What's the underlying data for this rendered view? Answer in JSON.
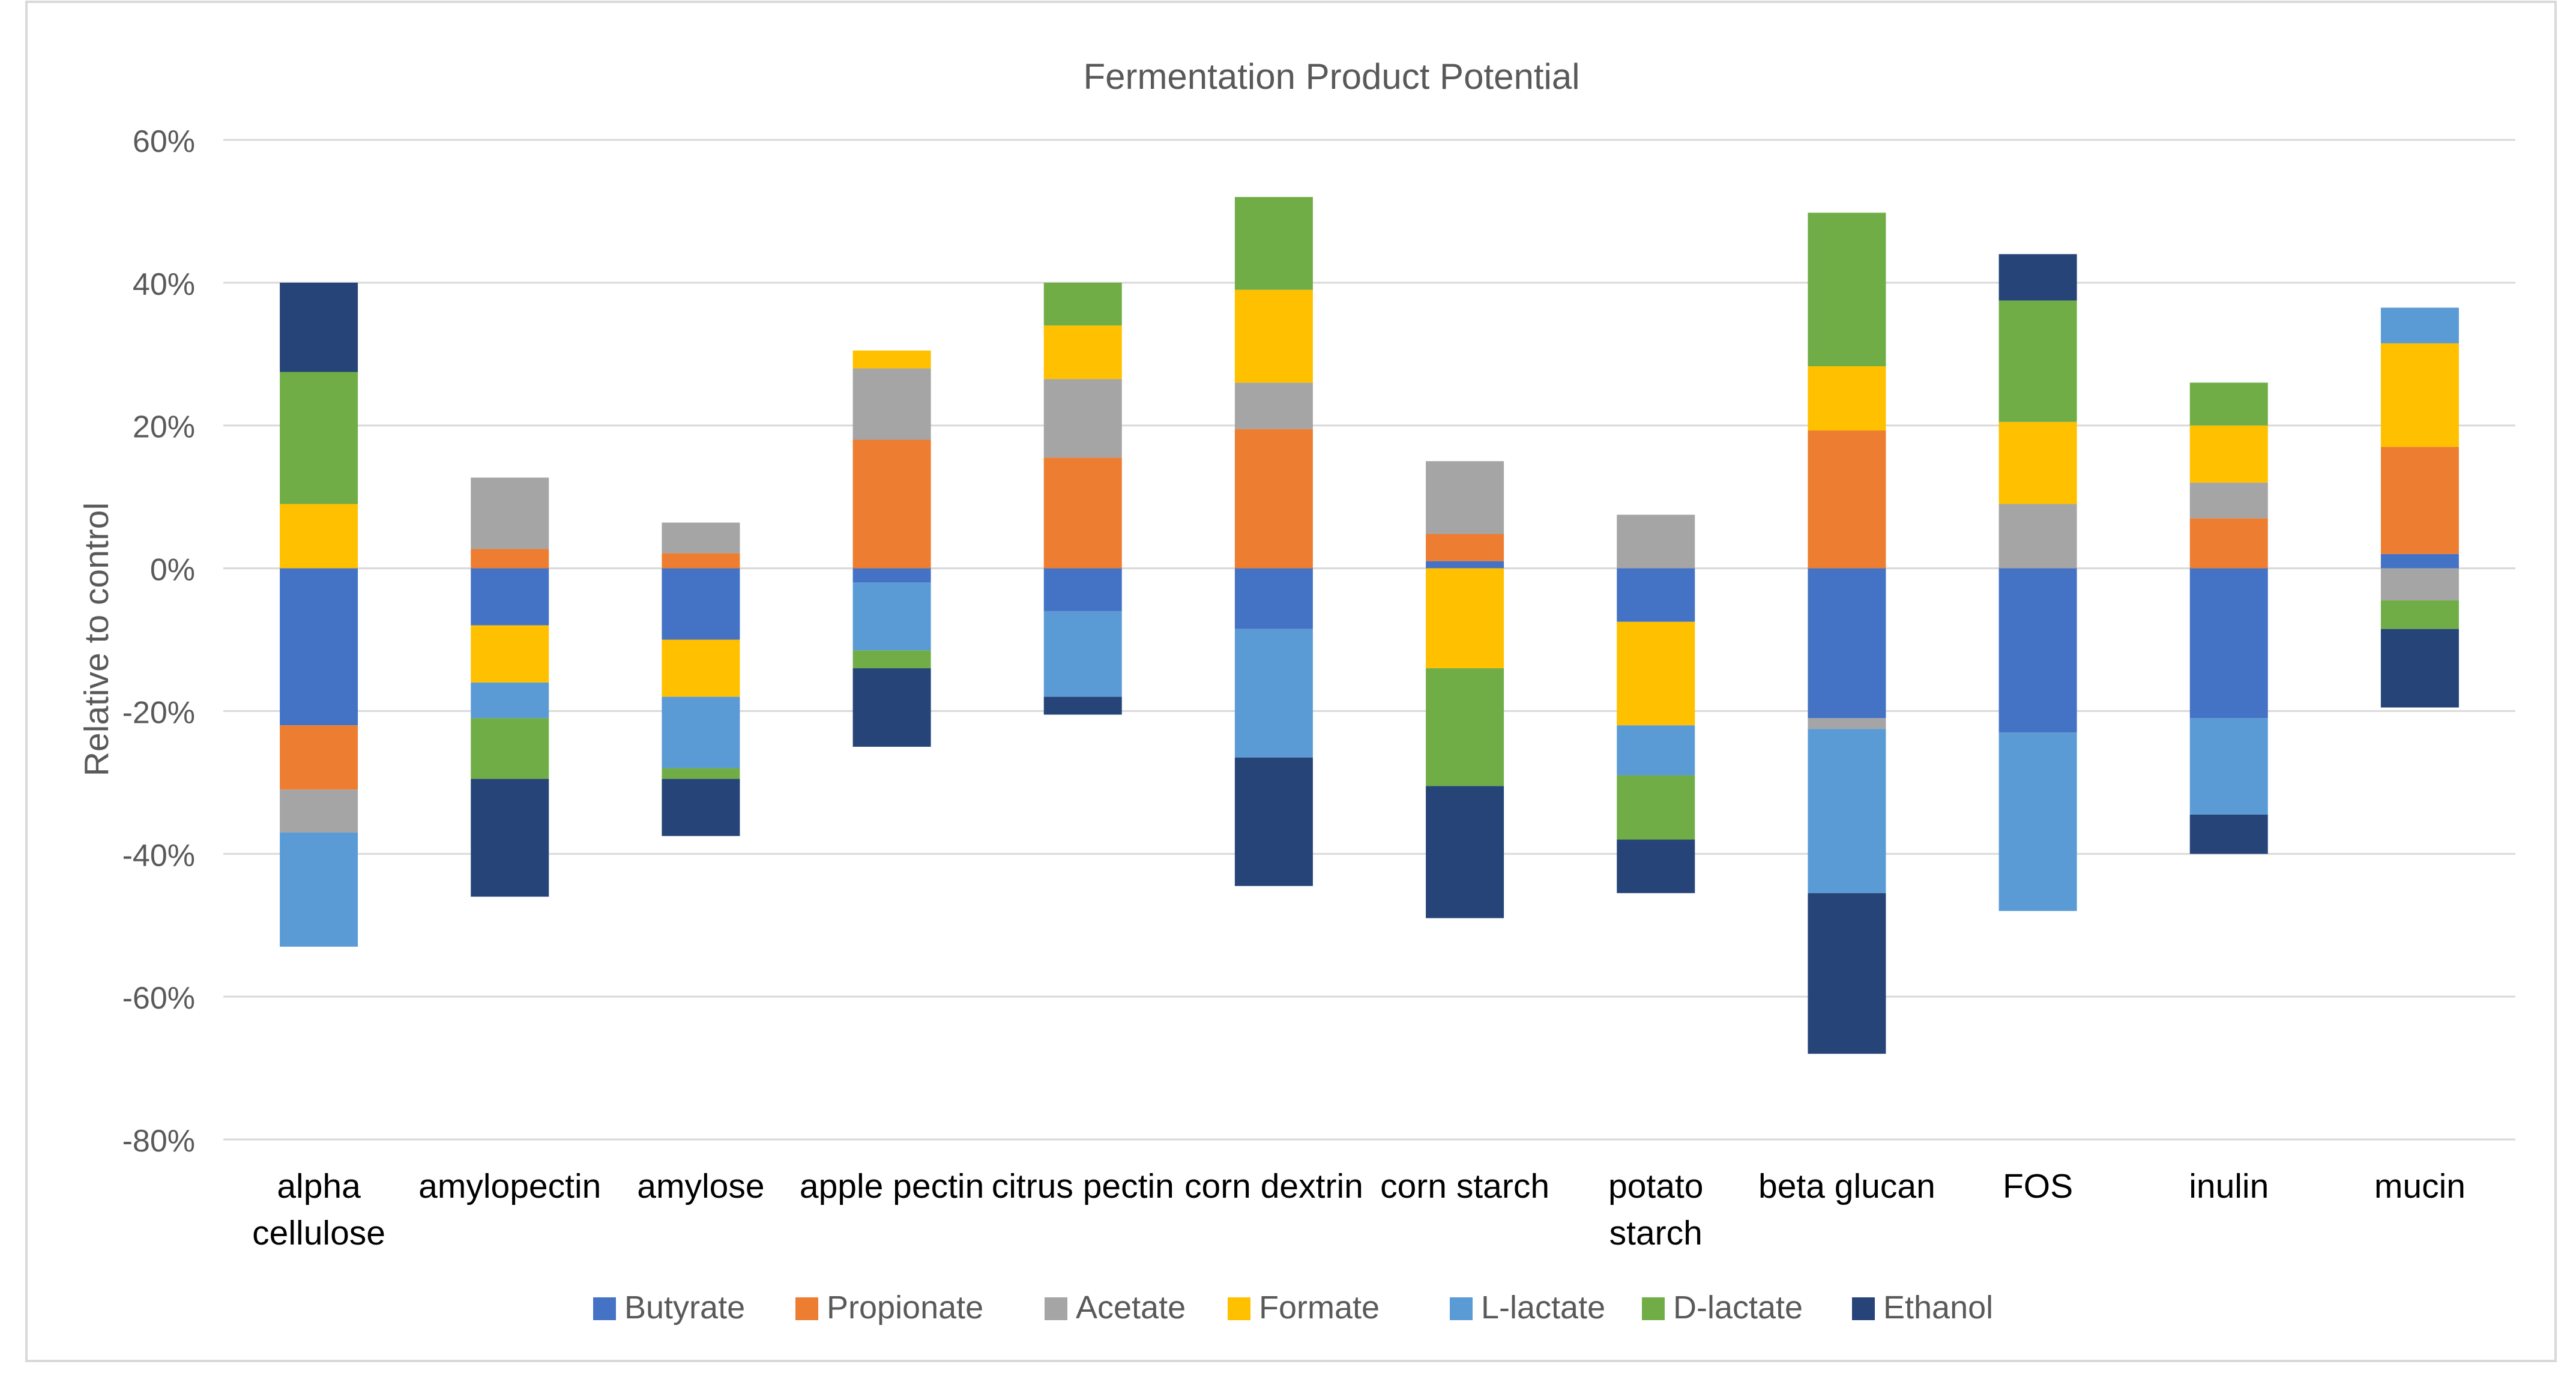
{
  "chart_data": {
    "type": "bar",
    "stacked": true,
    "title": "Fermentation Product Potential",
    "xlabel": "",
    "ylabel": "Relative to control",
    "ylim": [
      -80,
      60
    ],
    "yticks": [
      60,
      40,
      20,
      0,
      -20,
      -40,
      -60,
      -80
    ],
    "ytick_labels": [
      "60%",
      "40%",
      "20%",
      "0%",
      "-20%",
      "-40%",
      "-60%",
      "-80%"
    ],
    "grid": true,
    "legend_position": "bottom",
    "categories": [
      [
        "alpha",
        "cellulose"
      ],
      [
        "amylopectin"
      ],
      [
        "amylose"
      ],
      [
        "apple pectin"
      ],
      [
        "citrus pectin"
      ],
      [
        "corn dextrin"
      ],
      [
        "corn starch"
      ],
      [
        "potato",
        "starch"
      ],
      [
        "beta glucan"
      ],
      [
        "FOS"
      ],
      [
        "inulin"
      ],
      [
        "mucin"
      ]
    ],
    "series": [
      {
        "name": "Butyrate",
        "color": "#4472C4",
        "values": [
          -22,
          -8,
          -10,
          -2,
          -6,
          -8.5,
          1,
          -7.5,
          -21,
          -23,
          -21,
          2
        ]
      },
      {
        "name": "Propionate",
        "color": "#ED7D31",
        "values": [
          -9,
          2.7,
          2.1,
          18,
          15.5,
          19.5,
          3.8,
          0,
          19.3,
          0,
          7,
          15
        ]
      },
      {
        "name": "Acetate",
        "color": "#A5A5A5",
        "values": [
          -6,
          10,
          4.3,
          10,
          11,
          6.5,
          10.2,
          7.5,
          -1.5,
          9,
          5,
          -4.5
        ]
      },
      {
        "name": "Formate",
        "color": "#FFC000",
        "values": [
          9,
          -8,
          -8,
          2.5,
          7.5,
          13,
          -14,
          -14.5,
          9,
          11.5,
          8,
          14.5
        ]
      },
      {
        "name": "L-lactate",
        "color": "#5B9BD5",
        "values": [
          -16,
          -5,
          -10,
          -9.5,
          -12,
          -18,
          0,
          -7,
          -23,
          -25,
          -13.5,
          5
        ]
      },
      {
        "name": "D-lactate",
        "color": "#70AD47",
        "values": [
          18.5,
          -8.5,
          -1.5,
          -2.5,
          6,
          13,
          -16.5,
          -9,
          21.5,
          17,
          6,
          -4
        ]
      },
      {
        "name": "Ethanol",
        "color": "#264478",
        "values": [
          12.5,
          -16.5,
          -8,
          -11,
          -2.5,
          -18,
          -18.5,
          -7.5,
          -22.5,
          6.5,
          -5.5,
          -11
        ]
      }
    ]
  }
}
